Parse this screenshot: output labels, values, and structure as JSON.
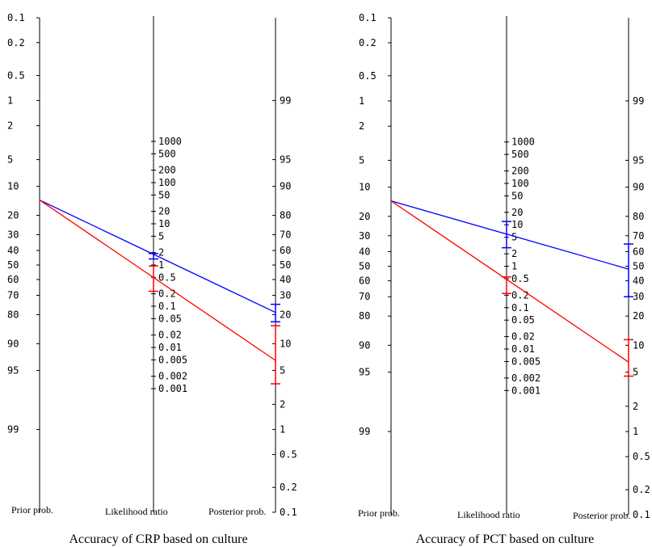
{
  "chart_data": [
    {
      "type": "line",
      "caption": "Accuracy of CRP based on culture",
      "axis_titles": {
        "prior": "Prior prob.",
        "lr": "Likelihood ratio",
        "posterior": "Posterior prob."
      },
      "prior_ticks": [
        "0.1",
        "0.2",
        "0.5",
        "1",
        "2",
        "5",
        "10",
        "20",
        "30",
        "40",
        "50",
        "60",
        "70",
        "80",
        "90",
        "95",
        "99"
      ],
      "lr_ticks": [
        "1000",
        "500",
        "200",
        "100",
        "50",
        "20",
        "10",
        "5",
        "2",
        "1",
        "0.5",
        "0.2",
        "0.1",
        "0.05",
        "0.02",
        "0.01",
        "0.005",
        "0.002",
        "0.001"
      ],
      "posterior_ticks": [
        "99",
        "95",
        "90",
        "80",
        "70",
        "60",
        "50",
        "40",
        "30",
        "20",
        "10",
        "5",
        "2",
        "1",
        "0.5",
        "0.2",
        "0.1"
      ],
      "series": [
        {
          "color": "#0000ff",
          "prior": 14,
          "lr": 1.6,
          "lr_ci": [
            1.9,
            1.4
          ],
          "posterior": 21,
          "posterior_ci": [
            25,
            17
          ]
        },
        {
          "color": "#ff0000",
          "prior": 14,
          "lr": 0.4,
          "lr_ci": [
            0.95,
            0.23
          ],
          "posterior": 6.5,
          "posterior_ci": [
            15.5,
            3.5
          ]
        }
      ]
    },
    {
      "type": "line",
      "caption": "Accuracy of PCT based on culture",
      "axis_titles": {
        "prior": "Prior prob.",
        "lr": "Likelihood ratio",
        "posterior": "Posterior prob."
      },
      "prior_ticks": [
        "0.1",
        "0.2",
        "0.5",
        "1",
        "2",
        "5",
        "10",
        "20",
        "30",
        "40",
        "50",
        "60",
        "70",
        "80",
        "90",
        "95",
        "99"
      ],
      "lr_ticks": [
        "1000",
        "500",
        "200",
        "100",
        "50",
        "20",
        "10",
        "5",
        "2",
        "1",
        "0.5",
        "0.2",
        "0.1",
        "0.05",
        "0.02",
        "0.01",
        "0.005",
        "0.002",
        "0.001"
      ],
      "posterior_ticks": [
        "99",
        "95",
        "90",
        "80",
        "70",
        "60",
        "50",
        "40",
        "30",
        "20",
        "10",
        "5",
        "2",
        "1",
        "0.5",
        "0.2",
        "0.1"
      ],
      "series": [
        {
          "color": "#0000ff",
          "prior": 14,
          "lr": 6.5,
          "lr_ci": [
            12,
            2.8
          ],
          "posterior": 48,
          "posterior_ci": [
            65,
            30
          ]
        },
        {
          "color": "#ff0000",
          "prior": 14,
          "lr": 0.35,
          "lr_ci": [
            0.55,
            0.22
          ],
          "posterior": 6.5,
          "posterior_ci": [
            11.5,
            4.5
          ]
        }
      ]
    }
  ]
}
